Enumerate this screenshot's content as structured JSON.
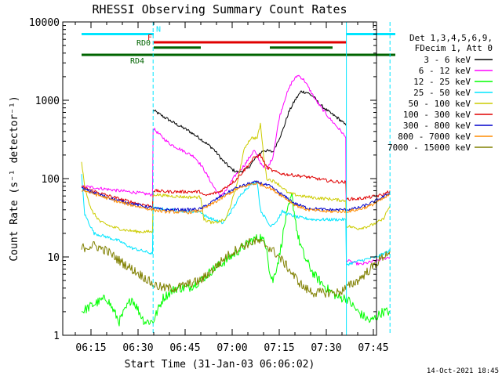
{
  "chart_data": {
    "type": "line",
    "title": "RHESSI Observing Summary Count Rates",
    "xlabel": "Start Time (31-Jan-03 06:06:02)",
    "ylabel": "Count Rate (s⁻¹ detector⁻¹)",
    "xlim": [
      "06:06",
      "07:46"
    ],
    "ylim": [
      1,
      10000
    ],
    "yscale": "log",
    "xticks": [
      {
        "t": 15,
        "label": "06:15"
      },
      {
        "t": 30,
        "label": "06:30"
      },
      {
        "t": 45,
        "label": "06:45"
      },
      {
        "t": 60,
        "label": "07:00"
      },
      {
        "t": 75,
        "label": "07:15"
      },
      {
        "t": 90,
        "label": "07:30"
      },
      {
        "t": 105,
        "label": "07:45"
      }
    ],
    "yticks": [
      {
        "v": 1,
        "label": "1"
      },
      {
        "v": 10,
        "label": "10"
      },
      {
        "v": 100,
        "label": "100"
      },
      {
        "v": 1000,
        "label": "1000"
      },
      {
        "v": 10000,
        "label": "10000"
      }
    ],
    "legend_header": [
      "Det 1,3,4,5,6,9,",
      "FDecim 1, Att 0"
    ],
    "legend_position": "right",
    "footer_date": "14-Oct-2021 18:45",
    "flags": [
      {
        "label": "N",
        "color": "#00e5ff",
        "level": 7000,
        "segments": [
          [
            6,
            29
          ],
          [
            90.5,
            106
          ]
        ]
      },
      {
        "label": "F",
        "color": "#e00000",
        "level": 5500,
        "segments": [
          [
            29,
            90.5
          ]
        ]
      },
      {
        "label": "RD0",
        "color": "#006400",
        "level": 4700,
        "segments": [
          [
            29,
            44
          ],
          [
            66,
            86
          ]
        ]
      },
      {
        "label": "RD4",
        "color": "#006400",
        "level": 3800,
        "segments": [
          [
            6,
            44
          ],
          [
            44,
            61
          ],
          [
            61,
            77
          ],
          [
            77,
            91
          ],
          [
            91,
            106
          ]
        ]
      }
    ],
    "vlines": [
      {
        "t": 28.8,
        "color": "#00e5ff",
        "style": "dashed"
      },
      {
        "t": 90.4,
        "color": "#00e5ff",
        "style": "solid"
      },
      {
        "t": 104.3,
        "color": "#00e5ff",
        "style": "dashed"
      }
    ],
    "series": [
      {
        "name": "3 - 6 keV",
        "color": "#000000",
        "points": [
          [
            28.8,
            750
          ],
          [
            32,
            620
          ],
          [
            36,
            500
          ],
          [
            40,
            410
          ],
          [
            44,
            320
          ],
          [
            48,
            240
          ],
          [
            51,
            170
          ],
          [
            54,
            130
          ],
          [
            56,
            120
          ],
          [
            59,
            135
          ],
          [
            62,
            195
          ],
          [
            64,
            230
          ],
          [
            67,
            220
          ],
          [
            70,
            400
          ],
          [
            72,
            700
          ],
          [
            74,
            1000
          ],
          [
            76,
            1300
          ],
          [
            78,
            1250
          ],
          [
            80,
            1100
          ],
          [
            82,
            880
          ],
          [
            85,
            700
          ],
          [
            88,
            580
          ],
          [
            90.2,
            480
          ]
        ]
      },
      {
        "name": "6 - 12 keV",
        "color": "#ff00ff",
        "points": [
          [
            6,
            80
          ],
          [
            12,
            75
          ],
          [
            18,
            70
          ],
          [
            24,
            66
          ],
          [
            28.6,
            62
          ],
          [
            28.8,
            440
          ],
          [
            31,
            360
          ],
          [
            34,
            280
          ],
          [
            38,
            230
          ],
          [
            42,
            190
          ],
          [
            44,
            150
          ],
          [
            45,
            130
          ],
          [
            48,
            80
          ],
          [
            50,
            60
          ],
          [
            52,
            70
          ],
          [
            55,
            110
          ],
          [
            58,
            150
          ],
          [
            61,
            230
          ],
          [
            63,
            160
          ],
          [
            65,
            130
          ],
          [
            67,
            190
          ],
          [
            69,
            600
          ],
          [
            71,
            1100
          ],
          [
            73,
            1700
          ],
          [
            75,
            2100
          ],
          [
            77,
            1800
          ],
          [
            79,
            1300
          ],
          [
            81,
            950
          ],
          [
            83,
            750
          ],
          [
            85,
            590
          ],
          [
            87,
            480
          ],
          [
            89,
            390
          ],
          [
            90.2,
            330
          ],
          [
            90.4,
            9
          ],
          [
            95,
            8
          ],
          [
            100,
            9
          ],
          [
            104.3,
            10
          ]
        ]
      },
      {
        "name": "12 - 25 keV",
        "color": "#00ff00",
        "points": [
          [
            6,
            2
          ],
          [
            10,
            2.5
          ],
          [
            14,
            3
          ],
          [
            18,
            1.5
          ],
          [
            22,
            3
          ],
          [
            26,
            1.5
          ],
          [
            28.8,
            1.5
          ],
          [
            32,
            3
          ],
          [
            36,
            4
          ],
          [
            40,
            4
          ],
          [
            44,
            5
          ],
          [
            48,
            7
          ],
          [
            52,
            9
          ],
          [
            56,
            12
          ],
          [
            60,
            16
          ],
          [
            63,
            18
          ],
          [
            65,
            14
          ],
          [
            66,
            6
          ],
          [
            67,
            5
          ],
          [
            69,
            10
          ],
          [
            71,
            30
          ],
          [
            73,
            60
          ],
          [
            75,
            18
          ],
          [
            77,
            10
          ],
          [
            80,
            6
          ],
          [
            84,
            4
          ],
          [
            88,
            3
          ],
          [
            90.4,
            3
          ],
          [
            94,
            2
          ],
          [
            98,
            1.5
          ],
          [
            102,
            2
          ],
          [
            104.3,
            2
          ]
        ]
      },
      {
        "name": "25 - 50 keV",
        "color": "#00e5ff",
        "points": [
          [
            6,
            110
          ],
          [
            7,
            35
          ],
          [
            10,
            20
          ],
          [
            14,
            18
          ],
          [
            18,
            16
          ],
          [
            22,
            13
          ],
          [
            28.6,
            11
          ],
          [
            28.8,
            42
          ],
          [
            34,
            40
          ],
          [
            40,
            38
          ],
          [
            44,
            38
          ],
          [
            45,
            34
          ],
          [
            48,
            30
          ],
          [
            51,
            27
          ],
          [
            54,
            40
          ],
          [
            57,
            65
          ],
          [
            60,
            85
          ],
          [
            62,
            90
          ],
          [
            63,
            40
          ],
          [
            66,
            25
          ],
          [
            68,
            28
          ],
          [
            70,
            38
          ],
          [
            72,
            35
          ],
          [
            75,
            32
          ],
          [
            80,
            30
          ],
          [
            85,
            30
          ],
          [
            90.2,
            30
          ],
          [
            90.4,
            8
          ],
          [
            95,
            9
          ],
          [
            100,
            10
          ],
          [
            104.3,
            12
          ]
        ]
      },
      {
        "name": "50 - 100 keV",
        "color": "#cccc00",
        "points": [
          [
            6,
            160
          ],
          [
            7,
            80
          ],
          [
            9,
            40
          ],
          [
            12,
            28
          ],
          [
            16,
            24
          ],
          [
            20,
            22
          ],
          [
            24,
            21
          ],
          [
            28.6,
            21
          ],
          [
            28.8,
            63
          ],
          [
            34,
            60
          ],
          [
            40,
            58
          ],
          [
            44,
            58
          ],
          [
            45,
            30
          ],
          [
            48,
            27
          ],
          [
            52,
            30
          ],
          [
            55,
            70
          ],
          [
            58,
            250
          ],
          [
            60,
            330
          ],
          [
            62,
            330
          ],
          [
            63,
            500
          ],
          [
            64,
            200
          ],
          [
            65,
            100
          ],
          [
            68,
            90
          ],
          [
            72,
            65
          ],
          [
            76,
            60
          ],
          [
            80,
            57
          ],
          [
            85,
            55
          ],
          [
            90.2,
            52
          ],
          [
            90.4,
            25
          ],
          [
            94,
            23
          ],
          [
            98,
            25
          ],
          [
            102,
            30
          ],
          [
            104.3,
            45
          ]
        ]
      },
      {
        "name": "100 - 300 keV",
        "color": "#e00000",
        "points": [
          [
            6,
            78
          ],
          [
            12,
            65
          ],
          [
            18,
            55
          ],
          [
            24,
            48
          ],
          [
            28.6,
            44
          ],
          [
            28.8,
            70
          ],
          [
            34,
            68
          ],
          [
            40,
            68
          ],
          [
            44,
            68
          ],
          [
            45,
            60
          ],
          [
            50,
            68
          ],
          [
            55,
            95
          ],
          [
            58,
            130
          ],
          [
            61,
            185
          ],
          [
            63,
            200
          ],
          [
            65,
            140
          ],
          [
            67,
            125
          ],
          [
            70,
            115
          ],
          [
            74,
            110
          ],
          [
            78,
            105
          ],
          [
            82,
            98
          ],
          [
            86,
            92
          ],
          [
            90.2,
            90
          ],
          [
            90.4,
            55
          ],
          [
            94,
            55
          ],
          [
            98,
            58
          ],
          [
            102,
            62
          ],
          [
            104.3,
            70
          ]
        ]
      },
      {
        "name": "300 - 800 keV",
        "color": "#0000cc",
        "points": [
          [
            6,
            75
          ],
          [
            12,
            62
          ],
          [
            18,
            52
          ],
          [
            24,
            46
          ],
          [
            28.6,
            42
          ],
          [
            32,
            40
          ],
          [
            40,
            40
          ],
          [
            44,
            41
          ],
          [
            50,
            58
          ],
          [
            55,
            75
          ],
          [
            60,
            88
          ],
          [
            62,
            90
          ],
          [
            66,
            80
          ],
          [
            70,
            62
          ],
          [
            74,
            48
          ],
          [
            78,
            42
          ],
          [
            84,
            40
          ],
          [
            90.2,
            40
          ],
          [
            94,
            42
          ],
          [
            98,
            48
          ],
          [
            102,
            58
          ],
          [
            104.3,
            65
          ]
        ]
      },
      {
        "name": "800 - 7000 keV",
        "color": "#ff8c00",
        "points": [
          [
            6,
            72
          ],
          [
            12,
            60
          ],
          [
            18,
            50
          ],
          [
            24,
            44
          ],
          [
            28.6,
            40
          ],
          [
            32,
            38
          ],
          [
            40,
            37
          ],
          [
            44,
            39
          ],
          [
            50,
            54
          ],
          [
            55,
            72
          ],
          [
            60,
            85
          ],
          [
            62,
            87
          ],
          [
            66,
            76
          ],
          [
            70,
            60
          ],
          [
            74,
            46
          ],
          [
            78,
            40
          ],
          [
            84,
            38
          ],
          [
            90.2,
            38
          ],
          [
            94,
            40
          ],
          [
            98,
            45
          ],
          [
            102,
            55
          ],
          [
            104.3,
            62
          ]
        ]
      },
      {
        "name": "7000 - 15000 keV",
        "color": "#808000",
        "points": [
          [
            6,
            13
          ],
          [
            10,
            14
          ],
          [
            14,
            12
          ],
          [
            18,
            9
          ],
          [
            22,
            7
          ],
          [
            26,
            5.5
          ],
          [
            28.6,
            4.5
          ],
          [
            32,
            4
          ],
          [
            36,
            4
          ],
          [
            40,
            4.5
          ],
          [
            44,
            5
          ],
          [
            48,
            7
          ],
          [
            52,
            10
          ],
          [
            56,
            13
          ],
          [
            60,
            15.5
          ],
          [
            62,
            16
          ],
          [
            65,
            14
          ],
          [
            68,
            11
          ],
          [
            71,
            8
          ],
          [
            74,
            5.5
          ],
          [
            77,
            4
          ],
          [
            80,
            3.5
          ],
          [
            84,
            3.5
          ],
          [
            88,
            3.5
          ],
          [
            90.2,
            4
          ],
          [
            94,
            5
          ],
          [
            98,
            7
          ],
          [
            102,
            10
          ],
          [
            104.3,
            12
          ]
        ]
      }
    ]
  }
}
